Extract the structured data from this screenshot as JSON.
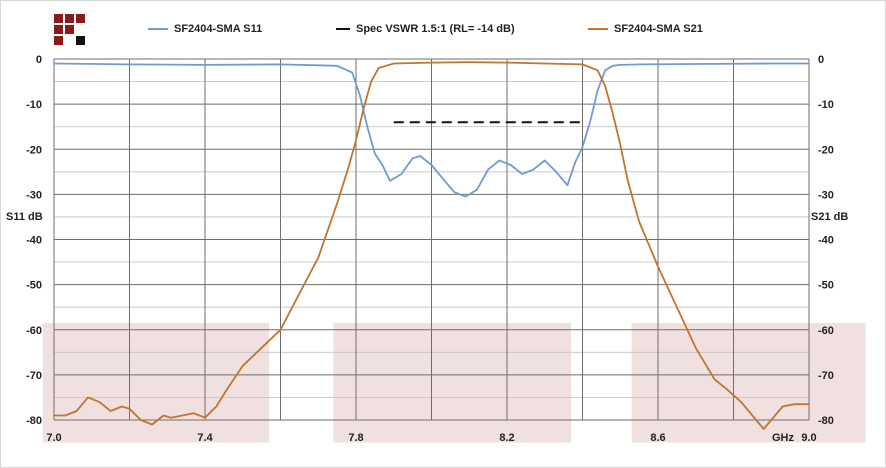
{
  "chart_data": {
    "type": "line",
    "title": "",
    "xlabel": "GHz",
    "ylabel_left": "S11 dB",
    "ylabel_right": "S21 dB",
    "xlim": [
      7.0,
      9.0
    ],
    "ylim": [
      -80,
      0
    ],
    "x_ticks": [
      "7.0",
      "7.4",
      "7.8",
      "8.2",
      "8.6",
      "9.0"
    ],
    "x_tick_values": [
      7.0,
      7.4,
      7.8,
      8.2,
      8.6,
      9.0
    ],
    "y_ticks_left": [
      "0",
      "-10",
      "-20",
      "-30",
      "-40",
      "-50",
      "-60",
      "-70",
      "-80"
    ],
    "y_ticks_right": [
      "0",
      "-10",
      "-20",
      "-30",
      "-40",
      "-50",
      "-60",
      "-70",
      "-80"
    ],
    "y_tick_values": [
      0,
      -10,
      -20,
      -30,
      -40,
      -50,
      -60,
      -70,
      -80
    ],
    "x_gridlines": [
      7.0,
      7.2,
      7.4,
      7.6,
      7.8,
      8.0,
      8.2,
      8.4,
      8.6,
      8.8,
      9.0
    ],
    "y_gridlines": [
      0,
      -5,
      -10,
      -15,
      -20,
      -25,
      -30,
      -35,
      -40,
      -45,
      -50,
      -55,
      -60,
      -65,
      -70,
      -75,
      -80
    ],
    "grid": true,
    "legend_position": "top",
    "shaded_regions": [
      {
        "x": [
          6.97,
          7.57
        ],
        "y": [
          -85,
          -58.5
        ]
      },
      {
        "x": [
          7.74,
          8.37
        ],
        "y": [
          -85,
          -58.5
        ]
      },
      {
        "x": [
          8.53,
          9.15
        ],
        "y": [
          -85,
          -58.5
        ]
      }
    ],
    "series": [
      {
        "name": "SF2404-SMA S11",
        "color": "#6f9bd0",
        "x": [
          7.0,
          7.2,
          7.4,
          7.6,
          7.75,
          7.79,
          7.81,
          7.83,
          7.85,
          7.87,
          7.89,
          7.92,
          7.95,
          7.97,
          8.0,
          8.03,
          8.06,
          8.09,
          8.12,
          8.15,
          8.18,
          8.21,
          8.24,
          8.27,
          8.3,
          8.33,
          8.36,
          8.38,
          8.4,
          8.42,
          8.44,
          8.46,
          8.48,
          8.5,
          8.55,
          8.7,
          8.9,
          9.0
        ],
        "y": [
          -1.0,
          -1.2,
          -1.3,
          -1.2,
          -1.5,
          -3.0,
          -8.0,
          -15.0,
          -21.0,
          -23.5,
          -27.0,
          -25.5,
          -22.0,
          -21.5,
          -23.5,
          -26.5,
          -29.5,
          -30.5,
          -29.0,
          -24.5,
          -22.5,
          -23.5,
          -25.5,
          -24.5,
          -22.5,
          -25.0,
          -28.0,
          -23.0,
          -19.5,
          -14.0,
          -7.0,
          -2.5,
          -1.5,
          -1.3,
          -1.2,
          -1.1,
          -1.0,
          -1.0
        ]
      },
      {
        "name": "Spec VSWR 1.5:1 (RL= -14 dB)",
        "color": "#111111",
        "dashed": true,
        "x": [
          7.9,
          8.4
        ],
        "y": [
          -14,
          -14
        ]
      },
      {
        "name": "SF2404-SMA S21",
        "color": "#c07530",
        "x": [
          7.0,
          7.03,
          7.06,
          7.09,
          7.12,
          7.15,
          7.18,
          7.2,
          7.23,
          7.26,
          7.29,
          7.31,
          7.34,
          7.37,
          7.4,
          7.43,
          7.46,
          7.5,
          7.55,
          7.6,
          7.65,
          7.7,
          7.75,
          7.78,
          7.8,
          7.82,
          7.84,
          7.86,
          7.9,
          8.0,
          8.1,
          8.2,
          8.3,
          8.4,
          8.44,
          8.46,
          8.48,
          8.5,
          8.52,
          8.55,
          8.6,
          8.65,
          8.7,
          8.75,
          8.78,
          8.82,
          8.85,
          8.88,
          8.9,
          8.93,
          8.96,
          9.0
        ],
        "y": [
          -79,
          -79,
          -78,
          -75,
          -76,
          -78,
          -77,
          -77.5,
          -80,
          -81,
          -79,
          -79.5,
          -79,
          -78.5,
          -79.5,
          -77,
          -73,
          -68,
          -64,
          -60,
          -52,
          -44,
          -32,
          -24,
          -18,
          -11,
          -5,
          -2,
          -1,
          -0.8,
          -0.7,
          -0.8,
          -1.0,
          -1.2,
          -2.5,
          -6,
          -12,
          -19,
          -27,
          -36,
          -46,
          -55,
          -64,
          -71,
          -73,
          -76,
          -79,
          -82,
          -80,
          -77,
          -76.5,
          -76.5
        ]
      }
    ]
  }
}
